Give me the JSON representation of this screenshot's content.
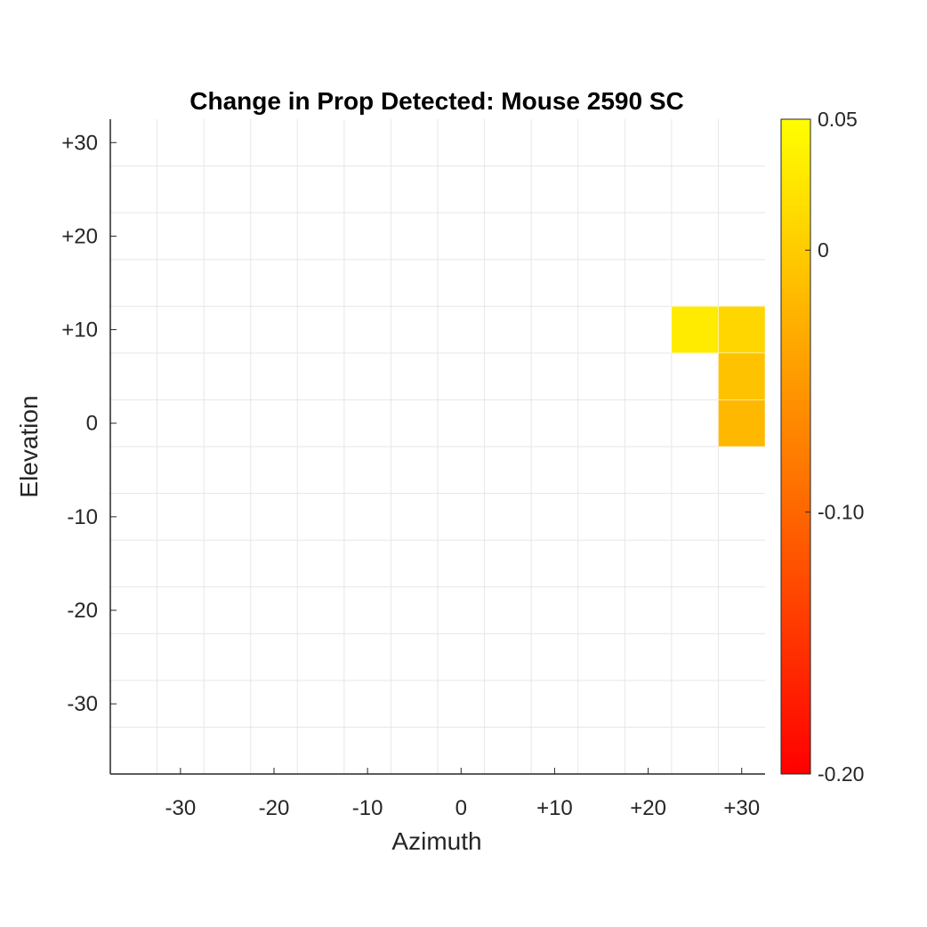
{
  "chart_data": {
    "type": "heatmap",
    "title": "Change in Prop Detected: Mouse 2590 SC",
    "xlabel": "Azimuth",
    "ylabel": "Elevation",
    "x_cells": [
      -35,
      -30,
      -25,
      -20,
      -15,
      -10,
      -5,
      0,
      5,
      10,
      15,
      20,
      25,
      30
    ],
    "y_cells": [
      30,
      25,
      20,
      15,
      10,
      5,
      0,
      -5,
      -10,
      -15,
      -20,
      -25,
      -30,
      -35
    ],
    "xlim": [
      -37.5,
      32.5
    ],
    "ylim": [
      -37.5,
      32.5
    ],
    "x_ticks": [
      -30,
      -20,
      -10,
      0,
      10,
      20,
      30
    ],
    "x_tick_labels": [
      "-30",
      "-20",
      "-10",
      "0",
      "+10",
      "+20",
      "+30"
    ],
    "y_ticks": [
      30,
      20,
      10,
      0,
      -10,
      -20,
      -30
    ],
    "y_tick_labels": [
      "+30",
      "+20",
      "+10",
      "0",
      "-10",
      "-20",
      "-30"
    ],
    "grid": true,
    "cells": [
      {
        "x": 25,
        "y": 10,
        "value": 0.03
      },
      {
        "x": 30,
        "y": 10,
        "value": 0.01
      },
      {
        "x": 30,
        "y": 5,
        "value": -0.01
      },
      {
        "x": 30,
        "y": 0,
        "value": -0.02
      }
    ],
    "colorbar": {
      "colormap": "autumn",
      "clim": [
        -0.2,
        0.05
      ],
      "ticks": [
        0.05,
        0,
        -0.1,
        -0.2
      ],
      "tick_labels": [
        "0.05",
        "0",
        "-0.10",
        "-0.20"
      ],
      "low_color": "#ff0000",
      "high_color": "#ffff00"
    }
  }
}
